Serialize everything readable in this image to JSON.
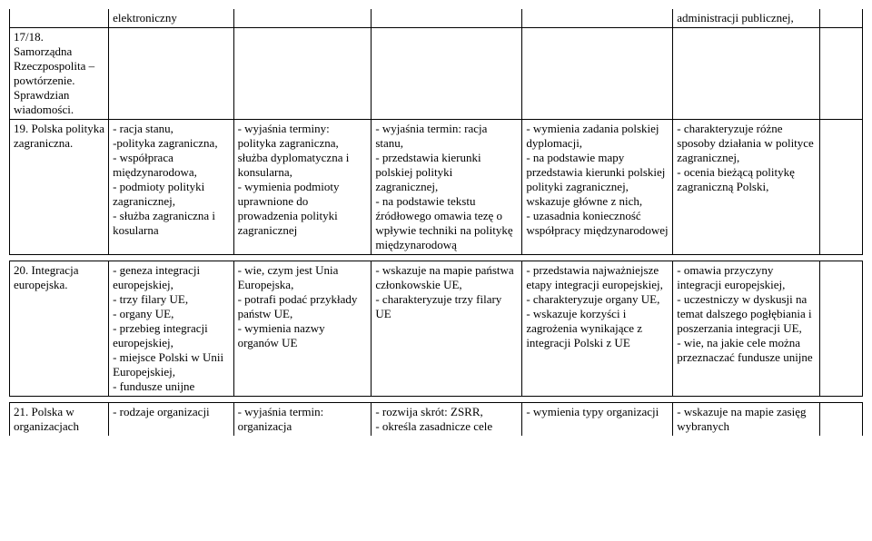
{
  "rows": [
    {
      "c1": "",
      "c2": "elektroniczny",
      "c3": "",
      "c4": "",
      "c5": "",
      "c6": "administracji publicznej,",
      "c7": ""
    },
    {
      "c1": "17/18. Samorządna Rzeczpospolita – powtórzenie. Sprawdzian wiadomości.",
      "c2": "",
      "c3": "",
      "c4": "",
      "c5": "",
      "c6": "",
      "c7": ""
    },
    {
      "c1": "19. Polska polityka zagraniczna.",
      "c2": "- racja stanu,\n-polityka zagraniczna,\n- współpraca międzynarodowa,\n- podmioty polityki zagranicznej,\n- służba zagraniczna i kosularna",
      "c3": "- wyjaśnia terminy: polityka zagraniczna, służba dyplomatyczna i konsularna,\n- wymienia podmioty uprawnione do prowadzenia polityki zagranicznej",
      "c4": "- wyjaśnia termin: racja stanu,\n- przedstawia kierunki polskiej polityki zagranicznej,\n- na podstawie tekstu źródłowego omawia tezę o wpływie techniki na politykę międzynarodową",
      "c5": "- wymienia zadania polskiej dyplomacji,\n- na podstawie  mapy przedstawia kierunki polskiej polityki zagranicznej, wskazuje główne z nich,\n- uzasadnia konieczność współpracy międzynarodowej",
      "c6": "- charakteryzuje różne sposoby działania w polityce zagranicznej,\n- ocenia bieżącą politykę zagraniczną Polski,",
      "c7": ""
    },
    {
      "c1": "20. Integracja europejska.",
      "c2": "- geneza integracji europejskiej,\n- trzy filary UE,\n- organy UE,\n- przebieg integracji europejskiej,\n- miejsce Polski w Unii Europejskiej,\n- fundusze unijne",
      "c3": "- wie, czym jest Unia Europejska,\n- potrafi podać przykłady państw UE,\n- wymienia nazwy organów UE",
      "c4": "- wskazuje na mapie państwa członkowskie UE,\n- charakteryzuje trzy filary UE",
      "c5": "- przedstawia najważniejsze etapy integracji europejskiej,\n- charakteryzuje organy UE,\n- wskazuje korzyści i zagrożenia wynikające z integracji Polski z UE",
      "c6": "- omawia przyczyny integracji europejskiej,\n- uczestniczy w dyskusji na temat dalszego pogłębiania i poszerzania integracji UE,\n- wie, na jakie cele można przeznaczać fundusze unijne",
      "c7": ""
    },
    {
      "c1": "21. Polska w organizacjach",
      "c2": "- rodzaje organizacji",
      "c3": "- wyjaśnia termin: organizacja",
      "c4": "- rozwija skrót: ZSRR,\n- określa zasadnicze cele",
      "c5": "- wymienia typy organizacji",
      "c6": "- wskazuje na mapie zasięg wybranych",
      "c7": ""
    }
  ]
}
